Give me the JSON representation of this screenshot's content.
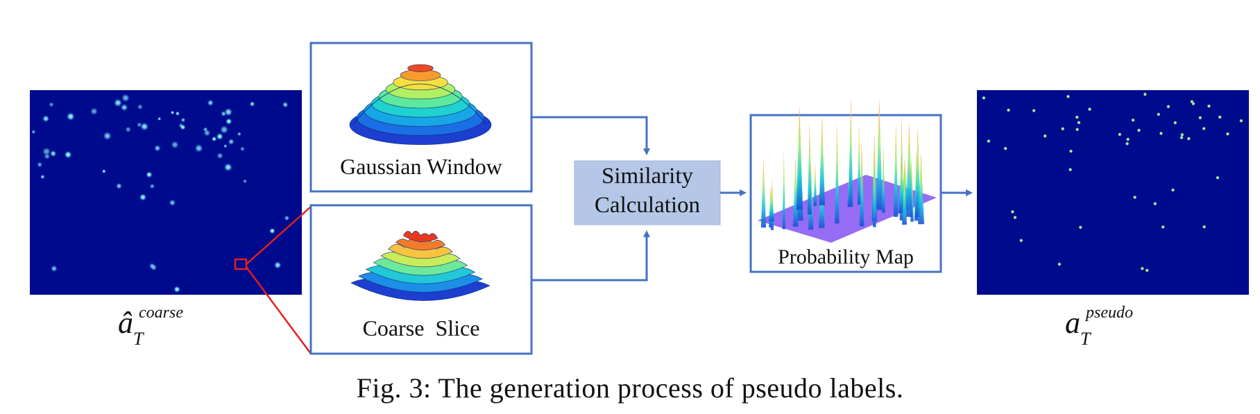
{
  "boxes": {
    "gaussian_window": "Gaussian Window",
    "coarse_slice": "Coarse  Slice",
    "similarity_line1": "Similarity",
    "similarity_line2": "Calculation",
    "probability_map": "Probability Map"
  },
  "symbols": {
    "coarse": {
      "base": "â",
      "sup": "coarse",
      "sub": "T"
    },
    "pseudo": {
      "base": "a",
      "sup": "pseudo",
      "sub": "T"
    }
  },
  "caption": "Fig. 3: The generation process of pseudo labels.",
  "colors": {
    "box_border": "#4472C4",
    "arrow": "#4472C4",
    "similarity_fill": "#B4C7E7",
    "map_background": "#000A8C",
    "zoom_highlight": "#E0201E",
    "peak_colors": [
      "#5FE3FF",
      "#8BF28B"
    ]
  }
}
